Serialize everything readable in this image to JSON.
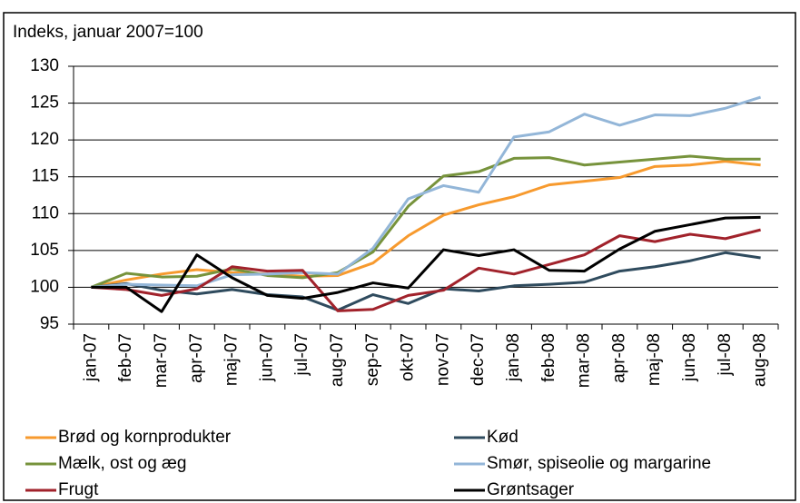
{
  "chart_data": {
    "type": "line",
    "ylabel": "Indeks, januar 2007=100",
    "categories": [
      "jan-07",
      "feb-07",
      "mar-07",
      "apr-07",
      "maj-07",
      "jun-07",
      "jul-07",
      "aug-07",
      "sep-07",
      "okt-07",
      "nov-07",
      "dec-07",
      "jan-08",
      "feb-08",
      "mar-08",
      "apr-08",
      "maj-08",
      "jun-08",
      "jul-08",
      "aug-08"
    ],
    "series": [
      {
        "name": "Brød og kornprodukter",
        "color": "#f79a2e",
        "values": [
          100,
          101,
          101.8,
          102.4,
          102,
          101.8,
          101.5,
          101.6,
          103.3,
          107,
          109.8,
          111.2,
          112.3,
          113.9,
          114.4,
          114.9,
          116.4,
          116.6,
          117.1,
          116.6
        ]
      },
      {
        "name": "Kød",
        "color": "#2f4b5e",
        "values": [
          100,
          100.5,
          99.6,
          99.1,
          99.7,
          99,
          98.7,
          96.9,
          99,
          97.8,
          99.8,
          99.5,
          100.2,
          100.4,
          100.7,
          102.2,
          102.8,
          103.6,
          104.7,
          104
        ]
      },
      {
        "name": "Mælk, ost og æg",
        "color": "#77933c",
        "values": [
          100,
          101.9,
          101.4,
          101.5,
          102.5,
          101.6,
          101.3,
          102,
          104.8,
          111,
          115.1,
          115.7,
          117.5,
          117.6,
          116.6,
          117,
          117.4,
          117.8,
          117.4,
          117.4
        ]
      },
      {
        "name": "Smør, spiseolie og margarine",
        "color": "#93b6d8",
        "values": [
          100,
          100.4,
          100.3,
          100.2,
          101.7,
          101.8,
          102,
          101.8,
          105.3,
          112,
          113.8,
          112.9,
          120.4,
          121.1,
          123.5,
          122,
          123.4,
          123.3,
          124.3,
          125.8
        ]
      },
      {
        "name": "Frugt",
        "color": "#a1222b",
        "values": [
          100,
          99.7,
          98.9,
          99.8,
          102.8,
          102.2,
          102.3,
          96.8,
          97,
          98.9,
          99.6,
          102.6,
          101.8,
          103.1,
          104.4,
          107,
          106.2,
          107.2,
          106.6,
          107.8
        ]
      },
      {
        "name": "Grøntsager",
        "color": "#000000",
        "values": [
          100,
          100,
          96.7,
          104.4,
          101.3,
          98.9,
          98.5,
          99.3,
          100.6,
          99.9,
          105.1,
          104.3,
          105.1,
          102.3,
          102.2,
          105.2,
          107.6,
          108.5,
          109.4,
          109.5
        ]
      }
    ],
    "ylim": [
      95,
      130
    ],
    "yticks": [
      95,
      100,
      105,
      110,
      115,
      120,
      125,
      130
    ],
    "grid": true
  }
}
